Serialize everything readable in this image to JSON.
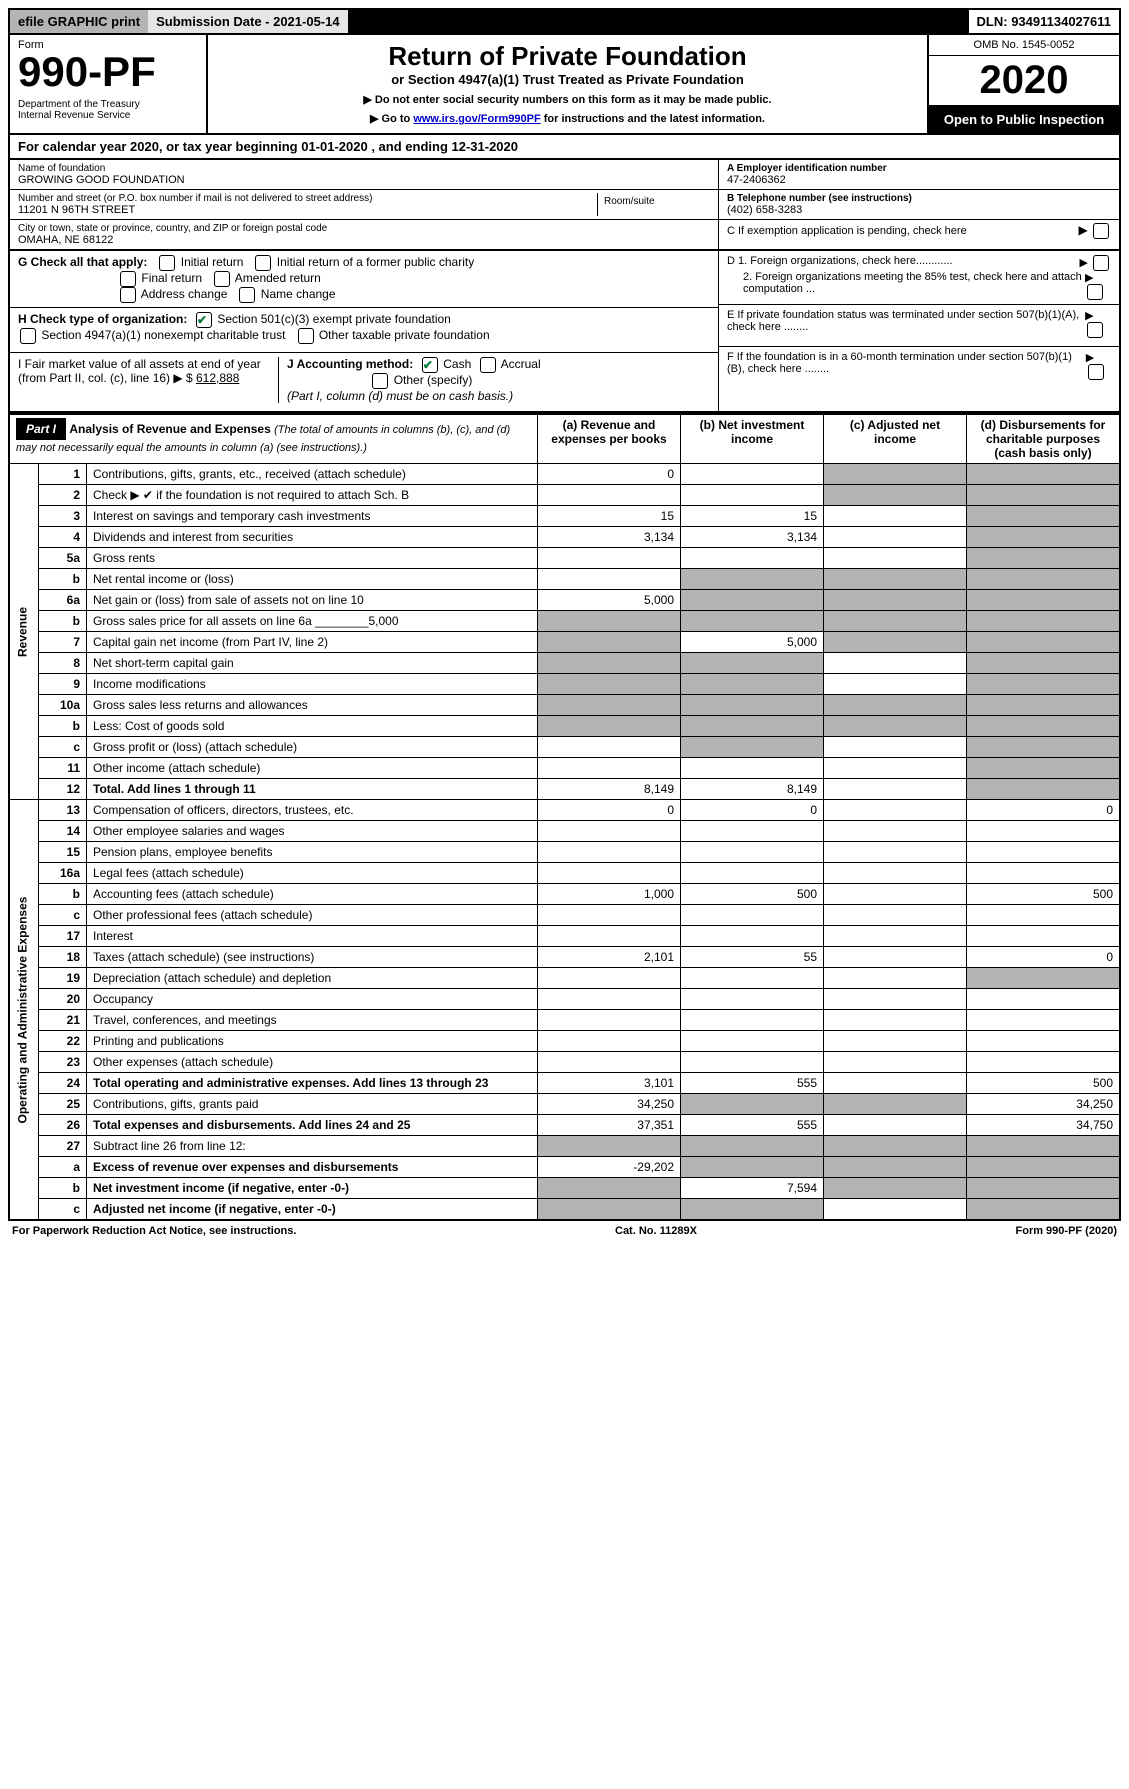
{
  "topbar": {
    "efile": "efile GRAPHIC print",
    "subdate_label": "Submission Date - 2021-05-14",
    "dln": "DLN: 93491134027611"
  },
  "header": {
    "form_word": "Form",
    "form_number": "990-PF",
    "dept": "Department of the Treasury\nInternal Revenue Service",
    "title": "Return of Private Foundation",
    "subtitle": "or Section 4947(a)(1) Trust Treated as Private Foundation",
    "instr1": "▶ Do not enter social security numbers on this form as it may be made public.",
    "instr2_pre": "▶ Go to ",
    "instr2_link": "www.irs.gov/Form990PF",
    "instr2_post": " for instructions and the latest information.",
    "omb": "OMB No. 1545-0052",
    "year": "2020",
    "inspect": "Open to Public Inspection"
  },
  "calyear": "For calendar year 2020, or tax year beginning 01-01-2020          , and ending 12-31-2020",
  "name": {
    "label": "Name of foundation",
    "value": "GROWING GOOD FOUNDATION"
  },
  "address": {
    "label": "Number and street (or P.O. box number if mail is not delivered to street address)",
    "value": "11201 N 96TH STREET",
    "room_label": "Room/suite"
  },
  "city": {
    "label": "City or town, state or province, country, and ZIP or foreign postal code",
    "value": "OMAHA, NE  68122"
  },
  "ein": {
    "label": "A Employer identification number",
    "value": "47-2406362"
  },
  "phone": {
    "label": "B Telephone number (see instructions)",
    "value": "(402) 658-3283"
  },
  "sectionC": "C If exemption application is pending, check here",
  "sectionD1": "D 1. Foreign organizations, check here............",
  "sectionD2": "2. Foreign organizations meeting the 85% test, check here and attach computation ...",
  "sectionE": "E If private foundation status was terminated under section 507(b)(1)(A), check here ........",
  "sectionF": "F If the foundation is in a 60-month termination under section 507(b)(1)(B), check here ........",
  "sectionG": {
    "label": "G Check all that apply:",
    "opts": [
      "Initial return",
      "Initial return of a former public charity",
      "Final return",
      "Amended return",
      "Address change",
      "Name change"
    ]
  },
  "sectionH": {
    "label": "H Check type of organization:",
    "opt1": "Section 501(c)(3) exempt private foundation",
    "opt2": "Section 4947(a)(1) nonexempt charitable trust",
    "opt3": "Other taxable private foundation"
  },
  "sectionI": {
    "label": "I Fair market value of all assets at end of year (from Part II, col. (c), line 16)",
    "prefix": "▶ $",
    "value": "612,888"
  },
  "sectionJ": {
    "label": "J Accounting method:",
    "cash": "Cash",
    "accrual": "Accrual",
    "other": "Other (specify)",
    "note": "(Part I, column (d) must be on cash basis.)"
  },
  "part1": {
    "label": "Part I",
    "title": "Analysis of Revenue and Expenses",
    "note": "(The total of amounts in columns (b), (c), and (d) may not necessarily equal the amounts in column (a) (see instructions).)",
    "cols": {
      "a": "(a)  Revenue and expenses per books",
      "b": "(b)  Net investment income",
      "c": "(c)  Adjusted net income",
      "d": "(d)  Disbursements for charitable purposes (cash basis only)"
    }
  },
  "side_revenue": "Revenue",
  "side_expenses": "Operating and Administrative Expenses",
  "rows": [
    {
      "n": "1",
      "t": "Contributions, gifts, grants, etc., received (attach schedule)",
      "a": "0",
      "b": "",
      "c": "sh",
      "d": "sh"
    },
    {
      "n": "2",
      "t": "Check ▶ ✔ if the foundation is not required to attach Sch. B",
      "a": "",
      "b": "",
      "c": "sh",
      "d": "sh"
    },
    {
      "n": "3",
      "t": "Interest on savings and temporary cash investments",
      "a": "15",
      "b": "15",
      "c": "",
      "d": "sh"
    },
    {
      "n": "4",
      "t": "Dividends and interest from securities",
      "a": "3,134",
      "b": "3,134",
      "c": "",
      "d": "sh"
    },
    {
      "n": "5a",
      "t": "Gross rents",
      "a": "",
      "b": "",
      "c": "",
      "d": "sh"
    },
    {
      "n": "b",
      "t": "Net rental income or (loss)",
      "a": "",
      "b": "sh",
      "c": "sh",
      "d": "sh"
    },
    {
      "n": "6a",
      "t": "Net gain or (loss) from sale of assets not on line 10",
      "a": "5,000",
      "b": "sh",
      "c": "sh",
      "d": "sh"
    },
    {
      "n": "b",
      "t": "Gross sales price for all assets on line 6a ________5,000",
      "a": "sh",
      "b": "sh",
      "c": "sh",
      "d": "sh"
    },
    {
      "n": "7",
      "t": "Capital gain net income (from Part IV, line 2)",
      "a": "sh",
      "b": "5,000",
      "c": "sh",
      "d": "sh"
    },
    {
      "n": "8",
      "t": "Net short-term capital gain",
      "a": "sh",
      "b": "sh",
      "c": "",
      "d": "sh"
    },
    {
      "n": "9",
      "t": "Income modifications",
      "a": "sh",
      "b": "sh",
      "c": "",
      "d": "sh"
    },
    {
      "n": "10a",
      "t": "Gross sales less returns and allowances",
      "a": "sh",
      "b": "sh",
      "c": "sh",
      "d": "sh"
    },
    {
      "n": "b",
      "t": "Less: Cost of goods sold",
      "a": "sh",
      "b": "sh",
      "c": "sh",
      "d": "sh"
    },
    {
      "n": "c",
      "t": "Gross profit or (loss) (attach schedule)",
      "a": "",
      "b": "sh",
      "c": "",
      "d": "sh"
    },
    {
      "n": "11",
      "t": "Other income (attach schedule)",
      "a": "",
      "b": "",
      "c": "",
      "d": "sh"
    },
    {
      "n": "12",
      "t": "Total. Add lines 1 through 11",
      "a": "8,149",
      "b": "8,149",
      "c": "",
      "d": "sh",
      "bold": true
    },
    {
      "n": "13",
      "t": "Compensation of officers, directors, trustees, etc.",
      "a": "0",
      "b": "0",
      "c": "",
      "d": "0"
    },
    {
      "n": "14",
      "t": "Other employee salaries and wages",
      "a": "",
      "b": "",
      "c": "",
      "d": ""
    },
    {
      "n": "15",
      "t": "Pension plans, employee benefits",
      "a": "",
      "b": "",
      "c": "",
      "d": ""
    },
    {
      "n": "16a",
      "t": "Legal fees (attach schedule)",
      "a": "",
      "b": "",
      "c": "",
      "d": ""
    },
    {
      "n": "b",
      "t": "Accounting fees (attach schedule)",
      "a": "1,000",
      "b": "500",
      "c": "",
      "d": "500"
    },
    {
      "n": "c",
      "t": "Other professional fees (attach schedule)",
      "a": "",
      "b": "",
      "c": "",
      "d": ""
    },
    {
      "n": "17",
      "t": "Interest",
      "a": "",
      "b": "",
      "c": "",
      "d": ""
    },
    {
      "n": "18",
      "t": "Taxes (attach schedule) (see instructions)",
      "a": "2,101",
      "b": "55",
      "c": "",
      "d": "0"
    },
    {
      "n": "19",
      "t": "Depreciation (attach schedule) and depletion",
      "a": "",
      "b": "",
      "c": "",
      "d": "sh"
    },
    {
      "n": "20",
      "t": "Occupancy",
      "a": "",
      "b": "",
      "c": "",
      "d": ""
    },
    {
      "n": "21",
      "t": "Travel, conferences, and meetings",
      "a": "",
      "b": "",
      "c": "",
      "d": ""
    },
    {
      "n": "22",
      "t": "Printing and publications",
      "a": "",
      "b": "",
      "c": "",
      "d": ""
    },
    {
      "n": "23",
      "t": "Other expenses (attach schedule)",
      "a": "",
      "b": "",
      "c": "",
      "d": ""
    },
    {
      "n": "24",
      "t": "Total operating and administrative expenses. Add lines 13 through 23",
      "a": "3,101",
      "b": "555",
      "c": "",
      "d": "500",
      "bold": true
    },
    {
      "n": "25",
      "t": "Contributions, gifts, grants paid",
      "a": "34,250",
      "b": "sh",
      "c": "sh",
      "d": "34,250"
    },
    {
      "n": "26",
      "t": "Total expenses and disbursements. Add lines 24 and 25",
      "a": "37,351",
      "b": "555",
      "c": "",
      "d": "34,750",
      "bold": true
    },
    {
      "n": "27",
      "t": "Subtract line 26 from line 12:",
      "a": "sh",
      "b": "sh",
      "c": "sh",
      "d": "sh"
    },
    {
      "n": "a",
      "t": "Excess of revenue over expenses and disbursements",
      "a": "-29,202",
      "b": "sh",
      "c": "sh",
      "d": "sh",
      "bold": true
    },
    {
      "n": "b",
      "t": "Net investment income (if negative, enter -0-)",
      "a": "sh",
      "b": "7,594",
      "c": "sh",
      "d": "sh",
      "bold": true
    },
    {
      "n": "c",
      "t": "Adjusted net income (if negative, enter -0-)",
      "a": "sh",
      "b": "sh",
      "c": "",
      "d": "sh",
      "bold": true
    }
  ],
  "footer": {
    "left": "For Paperwork Reduction Act Notice, see instructions.",
    "center": "Cat. No. 11289X",
    "right": "Form 990-PF (2020)"
  }
}
